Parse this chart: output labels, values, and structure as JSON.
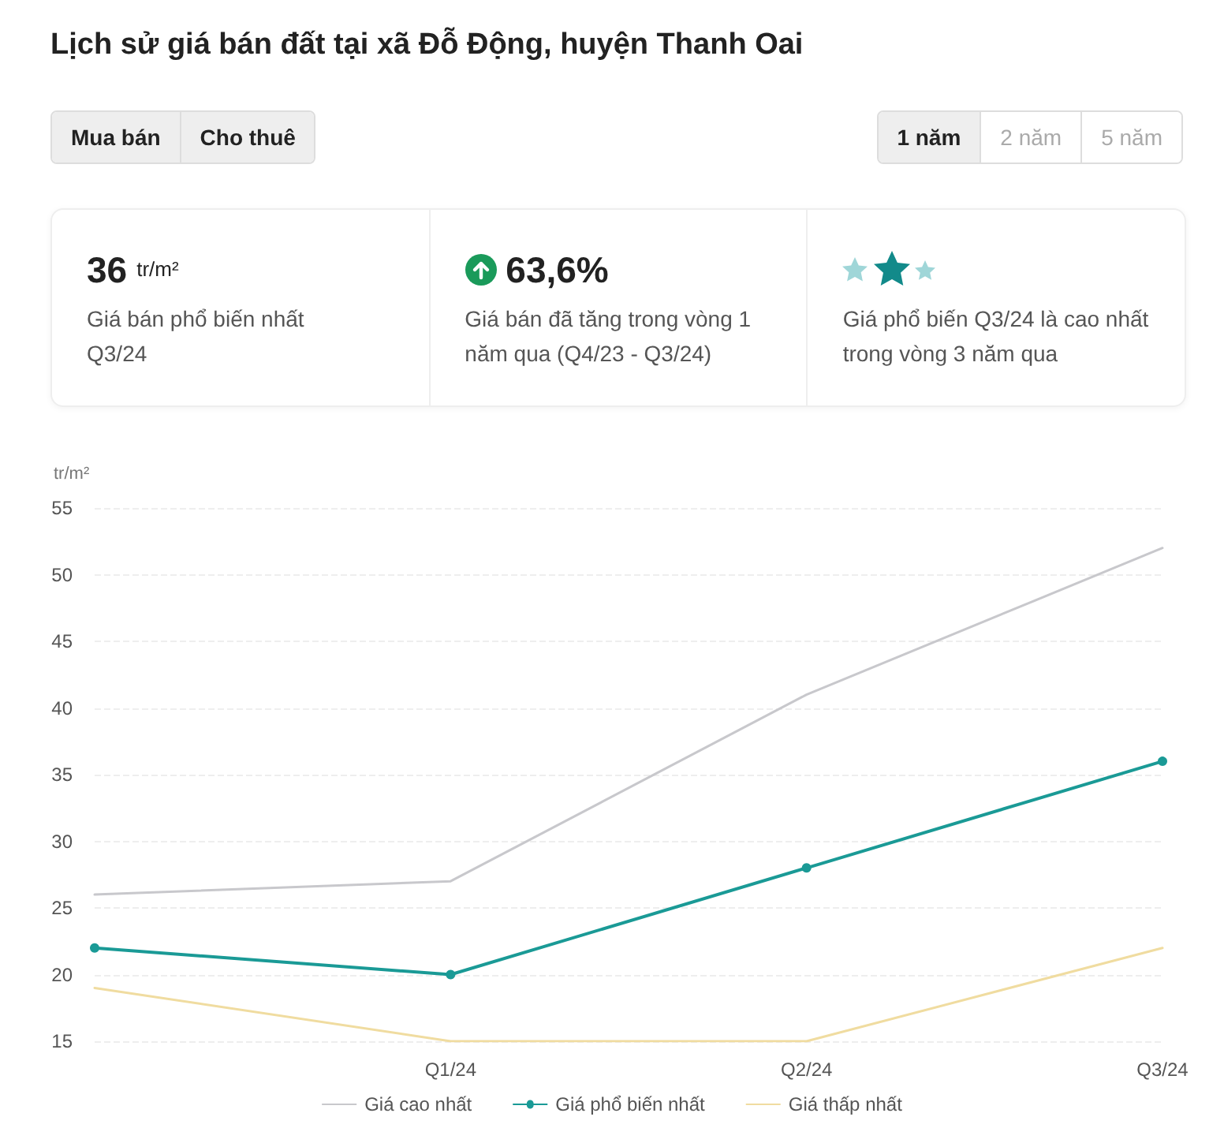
{
  "chart_data": {
    "type": "line",
    "title": "Lịch sử giá bán đất tại xã Đỗ Động, huyện Thanh Oai",
    "ylabel": "tr/m²",
    "annotations": [
      "Mua bán",
      "Cho thuê",
      "1 năm",
      "2 năm",
      "5 năm",
      "36",
      "tr/m²",
      "Giá bán phổ biến nhất Q3/24",
      "63,6%",
      "Giá bán đã tăng trong vòng 1 năm qua (Q4/23 - Q3/24)",
      "Giá phổ biến Q3/24 là cao nhất trong vòng 3 năm qua"
    ],
    "categories": [
      null,
      "Q1/24",
      "Q2/24",
      "Q3/24"
    ],
    "series": [
      {
        "name": "Giá cao nhất",
        "color": "#c8c8cc",
        "values": [
          26,
          27,
          41,
          52
        ],
        "marker": "none"
      },
      {
        "name": "Giá phổ biến nhất",
        "color": "#1a9a96",
        "values": [
          22,
          20,
          28,
          36
        ],
        "marker": "circle"
      },
      {
        "name": "Giá thấp nhất",
        "color": "#f0dca0",
        "values": [
          19,
          15,
          15,
          22
        ],
        "marker": "none"
      }
    ],
    "ylim": [
      15,
      55
    ],
    "yticks": [
      15,
      20,
      25,
      30,
      35,
      40,
      45,
      50,
      55
    ],
    "grid": "y",
    "legend": "bottom"
  }
}
